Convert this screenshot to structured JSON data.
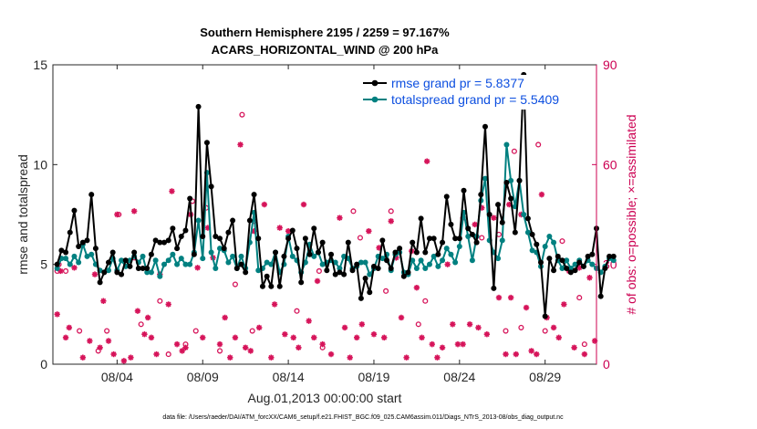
{
  "chart_data": {
    "type": "line",
    "title_line1": "Southern Hemisphere 2195 / 2259 = 97.167%",
    "title_line2": "ACARS_HORIZONTAL_WIND @ 200 hPa",
    "ylabel": "rmse and totalspread",
    "ylabel_right": "# of obs: o=possible; ×=assimilated",
    "xlabel": "Aug.01,2013 00:00:00 start",
    "footer": "data file: /Users/raeder/DAI/ATM_forcXX/CAM6_setup/f.e21.FHIST_BGC.f09_025.CAM6assim.011/Diags_NTrS_2013-08/obs_diag_output.nc",
    "ylim": [
      0,
      15
    ],
    "ylim_right": [
      0,
      90
    ],
    "xlim": [
      0.25,
      32.0
    ],
    "yticks": [
      "0",
      "5",
      "10",
      "15"
    ],
    "yticks_right": [
      "0",
      "30",
      "60",
      "90"
    ],
    "xtick_labels": [
      "08/04",
      "08/09",
      "08/14",
      "08/19",
      "08/24",
      "08/29"
    ],
    "xtick_days": [
      4,
      9,
      14,
      19,
      24,
      29
    ],
    "colors": {
      "rmse": "#000000",
      "spread": "#008080",
      "obs": "#d6145a",
      "legend_text": "#0d4fe0",
      "right_axis": "#cc0052"
    },
    "series": [
      {
        "name": "rmse grand pr = 5.8377",
        "values": [
          5.0,
          5.7,
          5.6,
          6.6,
          7.7,
          5.9,
          6.1,
          6.2,
          8.5,
          5.8,
          4.1,
          4.6,
          5.1,
          5.6,
          4.6,
          4.5,
          5.2,
          4.9,
          5.6,
          4.8,
          4.8,
          4.8,
          5.5,
          6.2,
          6.1,
          6.1,
          6.2,
          6.8,
          5.8,
          6.4,
          6.7,
          8.3,
          5.5,
          12.9,
          6.4,
          11.1,
          8.9,
          6.4,
          6.3,
          5.8,
          6.6,
          7.2,
          4.8,
          5.0,
          4.6,
          7.2,
          8.5,
          6.3,
          3.9,
          4.4,
          3.9,
          5.6,
          3.9,
          5.4,
          6.3,
          6.7,
          5.8,
          4.1,
          6.3,
          5.5,
          6.8,
          5.6,
          6.1,
          4.7,
          5.5,
          4.5,
          4.6,
          4.5,
          6.1,
          4.7,
          5.0,
          3.3,
          4.3,
          3.6,
          4.9,
          4.8,
          6.2,
          5.2,
          4.8,
          5.6,
          5.8,
          4.4,
          4.6,
          6.1,
          5.6,
          7.3,
          5.6,
          6.3,
          6.3,
          5.5,
          6.1,
          8.4,
          7.0,
          6.3,
          6.3,
          8.7,
          6.8,
          6.5,
          6.1,
          8.5,
          11.9,
          7.5,
          3.8,
          8.0,
          7.1,
          9.1,
          8.3,
          6.6,
          9.2,
          14.5,
          7.3,
          6.5,
          6.0,
          5.1,
          2.4,
          5.3,
          4.7,
          5.4,
          5.2,
          4.8,
          4.6,
          4.7,
          5.1,
          4.9,
          5.4,
          5.5,
          6.8,
          3.4,
          4.8,
          5.4,
          5.4
        ]
      },
      {
        "name": "totalspread grand pr = 5.5409",
        "values": [
          4.8,
          5.3,
          5.3,
          5.0,
          5.4,
          5.1,
          6.0,
          5.4,
          5.5,
          5.0,
          4.7,
          4.6,
          4.7,
          5.3,
          4.7,
          5.2,
          4.9,
          5.2,
          5.4,
          5.1,
          5.4,
          4.6,
          4.6,
          5.2,
          4.4,
          5.0,
          5.2,
          5.5,
          5.0,
          5.3,
          5.0,
          5.0,
          5.6,
          7.2,
          5.3,
          9.6,
          5.6,
          4.8,
          5.8,
          5.7,
          5.1,
          5.4,
          4.8,
          5.4,
          4.8,
          6.1,
          7.6,
          4.7,
          4.8,
          5.1,
          5.0,
          5.6,
          4.6,
          5.0,
          6.4,
          5.4,
          5.2,
          4.6,
          5.1,
          6.0,
          5.4,
          5.6,
          5.0,
          5.1,
          5.2,
          5.1,
          4.8,
          5.4,
          5.3,
          4.8,
          4.9,
          5.1,
          5.1,
          4.5,
          4.8,
          5.4,
          5.3,
          5.5,
          4.7,
          5.5,
          5.6,
          4.6,
          4.5,
          5.2,
          4.8,
          5.2,
          4.8,
          5.0,
          5.4,
          4.9,
          5.2,
          5.8,
          5.5,
          5.1,
          5.9,
          7.6,
          6.4,
          5.2,
          6.4,
          8.2,
          9.3,
          6.2,
          5.6,
          5.3,
          6.2,
          11.0,
          9.2,
          7.9,
          9.2,
          7.5,
          6.6,
          5.7,
          5.6,
          4.9,
          5.9,
          6.4,
          6.1,
          5.2,
          4.8,
          5.2,
          4.8,
          5.0,
          5.2,
          4.9,
          5.2,
          5.0,
          4.8,
          4.6,
          4.9,
          5.3,
          5.2
        ]
      }
    ],
    "obs_possible": [
      [
        0.5,
        28
      ],
      [
        0.6,
        30
      ],
      [
        1.0,
        28
      ],
      [
        1.8,
        10
      ],
      [
        2.9,
        4
      ],
      [
        3.4,
        10
      ],
      [
        4.1,
        45
      ],
      [
        5.0,
        32
      ],
      [
        5.4,
        12
      ],
      [
        6.5,
        19
      ],
      [
        7.0,
        3
      ],
      [
        8.0,
        6
      ],
      [
        8.4,
        49
      ],
      [
        8.6,
        10
      ],
      [
        9.2,
        47
      ],
      [
        10.0,
        4
      ],
      [
        10.9,
        24
      ],
      [
        11.3,
        75
      ],
      [
        11.9,
        10
      ],
      [
        12.0,
        43
      ],
      [
        14.5,
        16
      ],
      [
        15.8,
        28
      ],
      [
        16.0,
        5
      ],
      [
        17.8,
        46
      ],
      [
        18.2,
        38
      ],
      [
        19.7,
        22
      ],
      [
        20.0,
        46
      ],
      [
        21.6,
        12
      ],
      [
        22.0,
        19
      ],
      [
        24.2,
        44
      ],
      [
        25.3,
        38
      ],
      [
        26.3,
        39
      ],
      [
        26.7,
        10
      ],
      [
        27.2,
        64
      ],
      [
        27.6,
        11
      ],
      [
        28.6,
        66
      ],
      [
        29.0,
        10
      ],
      [
        30.0,
        37
      ],
      [
        31.0,
        20
      ],
      [
        31.3,
        6
      ]
    ],
    "obs_assimilated": [
      [
        0.5,
        15
      ],
      [
        0.7,
        28
      ],
      [
        1.0,
        8
      ],
      [
        1.2,
        11
      ],
      [
        1.5,
        29
      ],
      [
        2.0,
        2
      ],
      [
        2.4,
        7
      ],
      [
        2.7,
        27
      ],
      [
        3.0,
        5
      ],
      [
        3.2,
        19
      ],
      [
        3.5,
        7
      ],
      [
        3.8,
        3
      ],
      [
        4.0,
        45
      ],
      [
        4.4,
        1
      ],
      [
        4.8,
        2
      ],
      [
        5.0,
        46
      ],
      [
        5.2,
        16
      ],
      [
        5.6,
        9
      ],
      [
        5.8,
        14
      ],
      [
        6.0,
        8
      ],
      [
        6.3,
        3
      ],
      [
        6.5,
        27
      ],
      [
        7.0,
        18
      ],
      [
        7.2,
        52
      ],
      [
        7.5,
        6
      ],
      [
        7.8,
        4
      ],
      [
        8.0,
        5
      ],
      [
        8.3,
        45
      ],
      [
        8.7,
        29
      ],
      [
        9.0,
        8
      ],
      [
        9.3,
        41
      ],
      [
        9.6,
        32
      ],
      [
        10.0,
        6
      ],
      [
        10.3,
        14
      ],
      [
        10.6,
        2
      ],
      [
        10.9,
        8
      ],
      [
        11.2,
        66
      ],
      [
        11.5,
        5
      ],
      [
        11.8,
        4
      ],
      [
        12.0,
        40
      ],
      [
        12.3,
        11
      ],
      [
        12.6,
        48
      ],
      [
        13.0,
        2
      ],
      [
        13.2,
        18
      ],
      [
        13.5,
        41
      ],
      [
        13.8,
        9
      ],
      [
        14.0,
        40
      ],
      [
        14.3,
        8
      ],
      [
        14.6,
        5
      ],
      [
        14.9,
        48
      ],
      [
        15.2,
        13
      ],
      [
        15.5,
        8
      ],
      [
        15.7,
        25
      ],
      [
        16.0,
        6
      ],
      [
        16.5,
        3
      ],
      [
        17.0,
        44
      ],
      [
        17.3,
        11
      ],
      [
        17.6,
        2
      ],
      [
        18.0,
        8
      ],
      [
        18.3,
        12
      ],
      [
        18.7,
        40
      ],
      [
        19.0,
        9
      ],
      [
        19.3,
        35
      ],
      [
        19.6,
        8
      ],
      [
        20.0,
        43
      ],
      [
        20.3,
        32
      ],
      [
        20.6,
        14
      ],
      [
        20.9,
        2
      ],
      [
        21.2,
        34
      ],
      [
        21.5,
        23
      ],
      [
        21.8,
        8
      ],
      [
        22.1,
        61
      ],
      [
        22.4,
        6
      ],
      [
        22.7,
        2
      ],
      [
        23.0,
        5
      ],
      [
        23.3,
        30
      ],
      [
        23.6,
        12
      ],
      [
        23.9,
        6
      ],
      [
        24.2,
        6
      ],
      [
        24.6,
        12
      ],
      [
        24.9,
        42
      ],
      [
        25.1,
        11
      ],
      [
        25.3,
        47
      ],
      [
        25.6,
        9
      ],
      [
        26.0,
        44
      ],
      [
        26.3,
        20
      ],
      [
        26.7,
        3
      ],
      [
        26.9,
        48
      ],
      [
        27.0,
        20
      ],
      [
        27.3,
        3
      ],
      [
        27.6,
        45
      ],
      [
        27.9,
        17
      ],
      [
        28.2,
        4
      ],
      [
        28.5,
        3
      ],
      [
        28.8,
        51
      ],
      [
        29.1,
        14
      ],
      [
        29.5,
        11
      ],
      [
        29.8,
        8
      ],
      [
        30.1,
        18
      ],
      [
        30.4,
        28
      ],
      [
        30.7,
        5
      ],
      [
        31.0,
        29
      ],
      [
        31.3,
        3
      ],
      [
        31.6,
        26
      ],
      [
        31.9,
        7
      ]
    ]
  }
}
